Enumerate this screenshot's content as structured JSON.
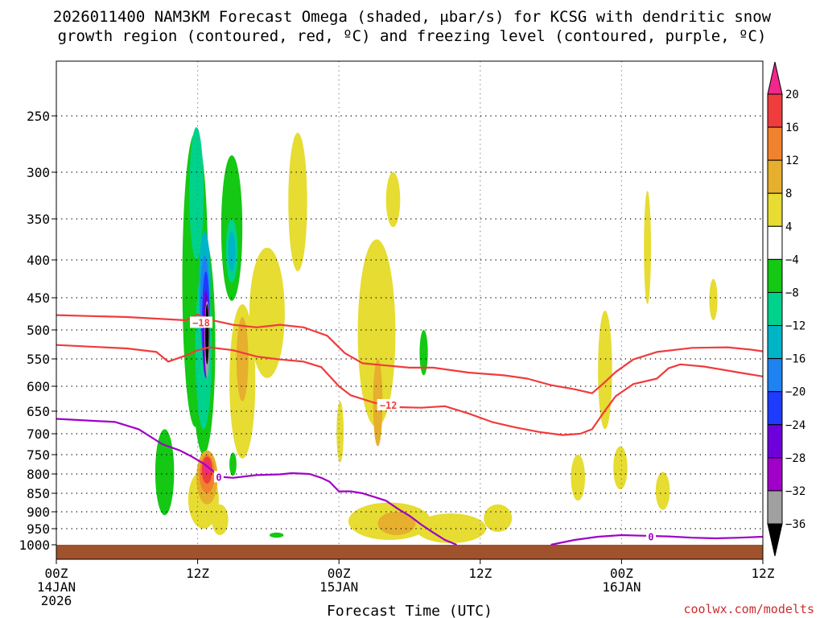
{
  "chart_data": {
    "type": "heatmap",
    "title_line1": "2026011400 NAM3KM Forecast Omega (shaded, μbar/s) for KCSG with dendritic snow",
    "title_line2": "growth region (contoured, red, ºC) and freezing level (contoured, purple, ºC)",
    "xlabel": "Forecast Time (UTC)",
    "credit": "coolwx.com/modelts",
    "x_axis": {
      "range_hours": [
        0,
        60
      ],
      "ticks": [
        {
          "hour": 0,
          "label": "00Z",
          "sub1": "14JAN",
          "sub2": "2026"
        },
        {
          "hour": 12,
          "label": "12Z",
          "sub1": "",
          "sub2": ""
        },
        {
          "hour": 24,
          "label": "00Z",
          "sub1": "15JAN",
          "sub2": ""
        },
        {
          "hour": 36,
          "label": "12Z",
          "sub1": "",
          "sub2": ""
        },
        {
          "hour": 48,
          "label": "00Z",
          "sub1": "16JAN",
          "sub2": ""
        },
        {
          "hour": 60,
          "label": "12Z",
          "sub1": "",
          "sub2": ""
        }
      ]
    },
    "y_axis": {
      "units": "hPa",
      "range": [
        1000,
        200
      ],
      "ticks": [
        {
          "p": 250,
          "label": "250"
        },
        {
          "p": 300,
          "label": "300"
        },
        {
          "p": 350,
          "label": "350"
        },
        {
          "p": 400,
          "label": "400"
        },
        {
          "p": 450,
          "label": "450"
        },
        {
          "p": 500,
          "label": "500"
        },
        {
          "p": 550,
          "label": "550"
        },
        {
          "p": 600,
          "label": "600"
        },
        {
          "p": 650,
          "label": "650"
        },
        {
          "p": 700,
          "label": "700"
        },
        {
          "p": 750,
          "label": "750"
        },
        {
          "p": 800,
          "label": "800"
        },
        {
          "p": 850,
          "label": "850"
        },
        {
          "p": 900,
          "label": "900"
        },
        {
          "p": 950,
          "label": "950"
        },
        {
          "p": 1000,
          "label": "1000"
        }
      ]
    },
    "colorbar": {
      "labels": [
        "20",
        "16",
        "12",
        "8",
        "4",
        "−4",
        "−8",
        "−12",
        "−16",
        "−20",
        "−24",
        "−28",
        "−32",
        "−36"
      ],
      "bands": [
        {
          "lo": 16,
          "hi": 20,
          "color": "#f03c3c"
        },
        {
          "lo": 12,
          "hi": 16,
          "color": "#f0822d"
        },
        {
          "lo": 8,
          "hi": 12,
          "color": "#e6af2d"
        },
        {
          "lo": 4,
          "hi": 8,
          "color": "#e6dc32"
        },
        {
          "lo": -4,
          "hi": 4,
          "color": "#ffffff"
        },
        {
          "lo": -8,
          "hi": -4,
          "color": "#14c814"
        },
        {
          "lo": -12,
          "hi": -8,
          "color": "#00d28c"
        },
        {
          "lo": -16,
          "hi": -12,
          "color": "#00b4c8"
        },
        {
          "lo": -20,
          "hi": -16,
          "color": "#1e82f0"
        },
        {
          "lo": -24,
          "hi": -20,
          "color": "#1e3cff"
        },
        {
          "lo": -28,
          "hi": -24,
          "color": "#6e00dc"
        },
        {
          "lo": -32,
          "hi": -28,
          "color": "#a000c8"
        },
        {
          "lo": -36,
          "hi": -32,
          "color": "#a0a0a0"
        }
      ],
      "top_arrow_color": "#f0288c",
      "bottom_arrow_color": "#000000"
    },
    "ground_color": "#a0522d",
    "series": [
      {
        "name": "-18C isotherm",
        "color": "#f03c3c",
        "label": "−18",
        "label_at": {
          "hour": 12.3,
          "p": 488
        },
        "points": [
          [
            0,
            477
          ],
          [
            6,
            480
          ],
          [
            9,
            483
          ],
          [
            11,
            485
          ],
          [
            12,
            476
          ],
          [
            13,
            484
          ],
          [
            15,
            492
          ],
          [
            17,
            496
          ],
          [
            19,
            492
          ],
          [
            21,
            496
          ],
          [
            23,
            510
          ],
          [
            24.5,
            540
          ],
          [
            26,
            558
          ],
          [
            28,
            562
          ],
          [
            30,
            566
          ],
          [
            32,
            566
          ],
          [
            35,
            575
          ],
          [
            38,
            580
          ],
          [
            40,
            586
          ],
          [
            42,
            598
          ],
          [
            44,
            606
          ],
          [
            45.5,
            614
          ],
          [
            46.5,
            594
          ],
          [
            47.5,
            574
          ],
          [
            49,
            551
          ],
          [
            51,
            538
          ],
          [
            54,
            531
          ],
          [
            57,
            530
          ],
          [
            59,
            534
          ],
          [
            60,
            537
          ]
        ]
      },
      {
        "name": "-12C isotherm",
        "color": "#f03c3c",
        "label": "−12",
        "label_at": {
          "hour": 28.2,
          "p": 637
        },
        "points": [
          [
            0,
            526
          ],
          [
            6,
            532
          ],
          [
            8.5,
            538
          ],
          [
            9.5,
            555
          ],
          [
            11,
            544
          ],
          [
            12,
            535
          ],
          [
            13,
            530
          ],
          [
            15,
            535
          ],
          [
            17,
            546
          ],
          [
            19,
            551
          ],
          [
            21,
            555
          ],
          [
            22.5,
            565
          ],
          [
            24,
            600
          ],
          [
            25,
            618
          ],
          [
            27,
            633
          ],
          [
            29,
            642
          ],
          [
            31,
            643
          ],
          [
            33,
            640
          ],
          [
            35,
            655
          ],
          [
            37,
            674
          ],
          [
            39,
            686
          ],
          [
            41,
            696
          ],
          [
            43,
            703
          ],
          [
            44.5,
            700
          ],
          [
            45.5,
            690
          ],
          [
            46.5,
            652
          ],
          [
            47.5,
            620
          ],
          [
            49,
            596
          ],
          [
            51,
            586
          ],
          [
            52,
            567
          ],
          [
            53,
            560
          ],
          [
            55,
            564
          ],
          [
            58,
            575
          ],
          [
            60,
            582
          ]
        ]
      },
      {
        "name": "0C freezing level",
        "color": "#a000c8",
        "label": "0",
        "label_at": {
          "hour": 13.8,
          "p": 807
        },
        "points": [
          [
            0,
            667
          ],
          [
            5,
            674
          ],
          [
            7,
            690
          ],
          [
            9,
            725
          ],
          [
            10.5,
            740
          ],
          [
            11.5,
            755
          ],
          [
            12.5,
            773
          ],
          [
            13.2,
            790
          ],
          [
            13.8,
            807
          ],
          [
            15,
            810
          ],
          [
            17,
            803
          ],
          [
            19,
            801
          ],
          [
            20,
            798
          ],
          [
            21.5,
            800
          ],
          [
            22.5,
            810
          ],
          [
            23.2,
            820
          ],
          [
            24,
            845
          ],
          [
            25,
            845
          ],
          [
            26,
            850
          ],
          [
            27,
            860
          ],
          [
            28,
            870
          ],
          [
            29,
            892
          ],
          [
            30,
            912
          ],
          [
            31,
            938
          ],
          [
            32,
            962
          ],
          [
            33,
            985
          ],
          [
            34,
            1000
          ]
        ]
      },
      {
        "name": "0C freezing level (later)",
        "color": "#a000c8",
        "label": "0",
        "label_at": {
          "hour": 50.5,
          "p": 974
        },
        "points": [
          [
            42,
            1000
          ],
          [
            44,
            985
          ],
          [
            46,
            975
          ],
          [
            48,
            970
          ],
          [
            50,
            972
          ],
          [
            52,
            974
          ],
          [
            54,
            978
          ],
          [
            56,
            980
          ],
          [
            58,
            978
          ],
          [
            60,
            975
          ]
        ]
      }
    ],
    "shaded_regions": [
      {
        "id": "green-stalk-1",
        "hour": 11.8,
        "p": 475,
        "hw": 1.1,
        "hp": 210,
        "omega": -6
      },
      {
        "id": "green-stalk-2",
        "hour": 12.5,
        "p": 560,
        "hw": 1.0,
        "hp": 190,
        "omega": -6
      },
      {
        "id": "green-tower-3",
        "hour": 14.9,
        "p": 370,
        "hw": 0.9,
        "hp": 85,
        "omega": -6
      },
      {
        "id": "green-low-1",
        "hour": 9.2,
        "p": 800,
        "hw": 0.8,
        "hp": 110,
        "omega": -6
      },
      {
        "id": "green-low-2",
        "hour": 15.0,
        "p": 775,
        "hw": 0.3,
        "hp": 30,
        "omega": -6
      },
      {
        "id": "green-tiny-1",
        "hour": 18.7,
        "p": 970,
        "hw": 0.6,
        "hp": 8,
        "omega": -6
      },
      {
        "id": "green-mid-1",
        "hour": 31.2,
        "p": 540,
        "hw": 0.35,
        "hp": 40,
        "omega": -6
      },
      {
        "id": "teal-1",
        "hour": 11.9,
        "p": 330,
        "hw": 0.6,
        "hp": 70,
        "omega": -10
      },
      {
        "id": "teal-2",
        "hour": 12.5,
        "p": 550,
        "hw": 0.7,
        "hp": 140,
        "omega": -10
      },
      {
        "id": "teal-3",
        "hour": 14.9,
        "p": 390,
        "hw": 0.5,
        "hp": 40,
        "omega": -10
      },
      {
        "id": "cyan-1",
        "hour": 12.6,
        "p": 440,
        "hw": 0.5,
        "hp": 75,
        "omega": -14
      },
      {
        "id": "cyan-2",
        "hour": 14.9,
        "p": 390,
        "hw": 0.3,
        "hp": 25,
        "omega": -14
      },
      {
        "id": "blue-1",
        "hour": 12.6,
        "p": 470,
        "hw": 0.4,
        "hp": 75,
        "omega": -18
      },
      {
        "id": "darkblue-1",
        "hour": 12.7,
        "p": 500,
        "hw": 0.33,
        "hp": 85,
        "omega": -22
      },
      {
        "id": "indigo-1",
        "hour": 12.7,
        "p": 510,
        "hw": 0.28,
        "hp": 70,
        "omega": -26
      },
      {
        "id": "purple-1",
        "hour": 12.8,
        "p": 510,
        "hw": 0.24,
        "hp": 55,
        "omega": -30
      },
      {
        "id": "gray-1",
        "hour": 12.8,
        "p": 520,
        "hw": 0.2,
        "hp": 65,
        "omega": -34
      },
      {
        "id": "black-core",
        "hour": 12.8,
        "p": 510,
        "hw": 0.15,
        "hp": 50,
        "omega": -38
      },
      {
        "id": "yellow-1",
        "hour": 20.5,
        "p": 340,
        "hw": 0.8,
        "hp": 75,
        "omega": 6
      },
      {
        "id": "yellow-2",
        "hour": 28.6,
        "p": 330,
        "hw": 0.6,
        "hp": 30,
        "omega": 6
      },
      {
        "id": "yellow-3",
        "hour": 17.9,
        "p": 485,
        "hw": 1.5,
        "hp": 100,
        "omega": 6
      },
      {
        "id": "yellow-4",
        "hour": 15.8,
        "p": 610,
        "hw": 1.1,
        "hp": 150,
        "omega": 6
      },
      {
        "id": "yellow-5",
        "hour": 12.5,
        "p": 870,
        "hw": 1.3,
        "hp": 80,
        "omega": 6
      },
      {
        "id": "yellow-6",
        "hour": 13.9,
        "p": 925,
        "hw": 0.7,
        "hp": 45,
        "omega": 6
      },
      {
        "id": "yellow-7",
        "hour": 27.2,
        "p": 530,
        "hw": 1.6,
        "hp": 155,
        "omega": 6
      },
      {
        "id": "yellow-8",
        "hour": 28.3,
        "p": 930,
        "hw": 3.5,
        "hp": 55,
        "omega": 6
      },
      {
        "id": "yellow-9",
        "hour": 33.5,
        "p": 950,
        "hw": 3.0,
        "hp": 45,
        "omega": 6
      },
      {
        "id": "yellow-10",
        "hour": 37.5,
        "p": 920,
        "hw": 1.2,
        "hp": 40,
        "omega": 6
      },
      {
        "id": "yellow-11",
        "hour": 44.3,
        "p": 810,
        "hw": 0.6,
        "hp": 60,
        "omega": 6
      },
      {
        "id": "yellow-12",
        "hour": 46.6,
        "p": 580,
        "hw": 0.6,
        "hp": 110,
        "omega": 6
      },
      {
        "id": "yellow-13",
        "hour": 47.9,
        "p": 785,
        "hw": 0.6,
        "hp": 55,
        "omega": 6
      },
      {
        "id": "yellow-14",
        "hour": 50.2,
        "p": 390,
        "hw": 0.3,
        "hp": 70,
        "omega": 6
      },
      {
        "id": "yellow-15",
        "hour": 51.5,
        "p": 845,
        "hw": 0.6,
        "hp": 50,
        "omega": 6
      },
      {
        "id": "yellow-16",
        "hour": 55.8,
        "p": 455,
        "hw": 0.35,
        "hp": 30,
        "omega": 6
      },
      {
        "id": "yellow-17",
        "hour": 24.1,
        "p": 700,
        "hw": 0.3,
        "hp": 70,
        "omega": 6
      },
      {
        "id": "orange-1",
        "hour": 15.8,
        "p": 555,
        "hw": 0.5,
        "hp": 75,
        "omega": 10
      },
      {
        "id": "orange-2",
        "hour": 27.3,
        "p": 640,
        "hw": 0.4,
        "hp": 90,
        "omega": 10
      },
      {
        "id": "orange-3",
        "hour": 28.9,
        "p": 935,
        "hw": 1.6,
        "hp": 35,
        "omega": 10
      },
      {
        "id": "orange-4",
        "hour": 12.8,
        "p": 810,
        "hw": 0.9,
        "hp": 70,
        "omega": 10
      },
      {
        "id": "deep-orange-1",
        "hour": 12.8,
        "p": 800,
        "hw": 0.65,
        "hp": 50,
        "omega": 14
      },
      {
        "id": "red-1",
        "hour": 12.8,
        "p": 790,
        "hw": 0.45,
        "hp": 35,
        "omega": 18
      },
      {
        "id": "magenta-1",
        "hour": 12.8,
        "p": 785,
        "hw": 0.25,
        "hp": 18,
        "omega": 22
      }
    ]
  }
}
